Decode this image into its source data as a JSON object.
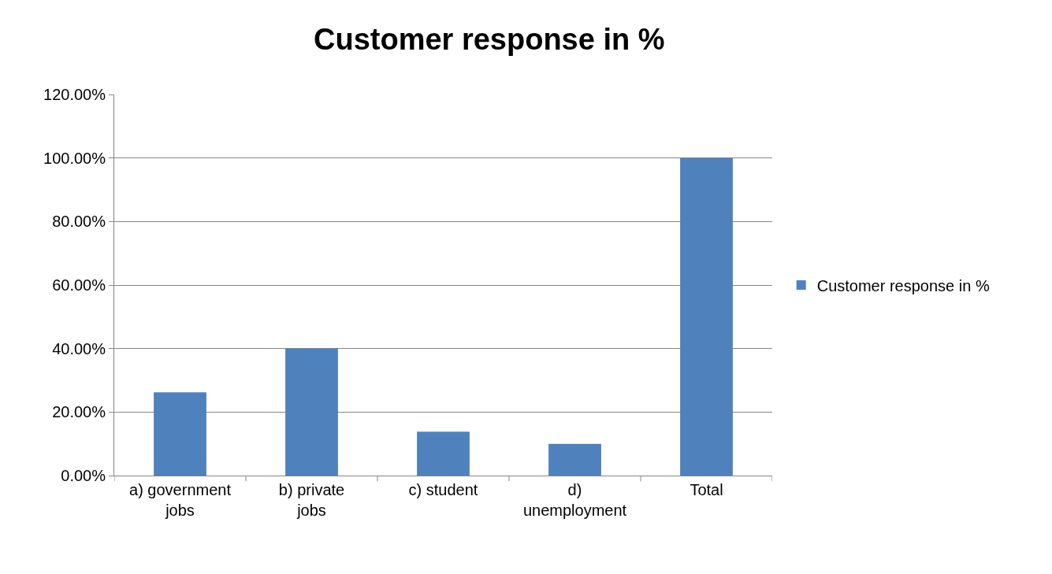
{
  "chart_data": {
    "type": "bar",
    "title": "Customer response in %",
    "categories": [
      "a) government jobs",
      "b) private jobs",
      "c) student",
      "d) unemployment",
      "Total"
    ],
    "series": [
      {
        "name": "Customer response in %",
        "color": "#4f81bd",
        "values": [
          26.2,
          40,
          13.8,
          10,
          100
        ]
      }
    ],
    "ylim": [
      0,
      120
    ],
    "yticks": [
      {
        "value": 0,
        "label": "0.00%"
      },
      {
        "value": 20,
        "label": "20.00%"
      },
      {
        "value": 40,
        "label": "40.00%"
      },
      {
        "value": 60,
        "label": "60.00%"
      },
      {
        "value": 80,
        "label": "80.00%"
      },
      {
        "value": 100,
        "label": "100.00%"
      },
      {
        "value": 120,
        "label": "120.00%"
      }
    ],
    "grid": "y",
    "legend": "right"
  }
}
